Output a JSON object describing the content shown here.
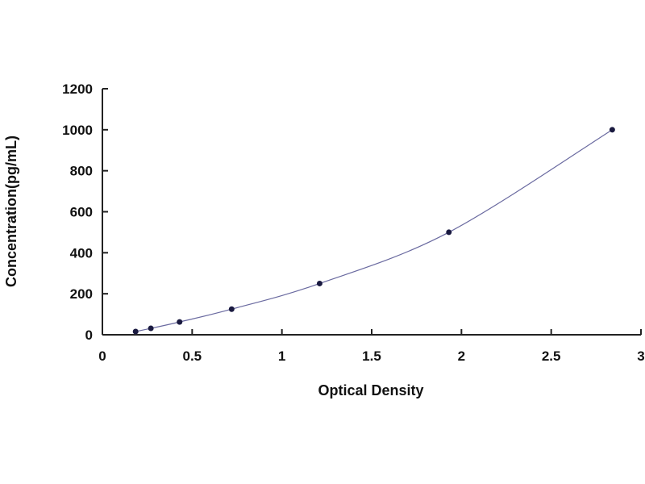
{
  "chart_data": {
    "type": "scatter",
    "title": "",
    "xlabel": "Optical Density",
    "ylabel": "Concentration(pg/mL)",
    "xlim": [
      0,
      3
    ],
    "ylim": [
      0,
      1200
    ],
    "xticks": [
      "0",
      "0.5",
      "1",
      "1.5",
      "2",
      "2.5",
      "3"
    ],
    "xtick_values": [
      0,
      0.5,
      1,
      1.5,
      2,
      2.5,
      3
    ],
    "yticks": [
      "0",
      "200",
      "400",
      "600",
      "800",
      "1000",
      "1200"
    ],
    "ytick_values": [
      0,
      200,
      400,
      600,
      800,
      1000,
      1200
    ],
    "grid": false,
    "fit_curve": true,
    "colors": {
      "points": "#1a1a40",
      "curve": "#6a6aa0",
      "axis": "#222222"
    },
    "points": [
      {
        "x": 0.185,
        "y": 15.6
      },
      {
        "x": 0.27,
        "y": 31.25
      },
      {
        "x": 0.43,
        "y": 62.5
      },
      {
        "x": 0.72,
        "y": 125
      },
      {
        "x": 1.21,
        "y": 250
      },
      {
        "x": 1.93,
        "y": 500
      },
      {
        "x": 2.84,
        "y": 1000
      }
    ]
  }
}
